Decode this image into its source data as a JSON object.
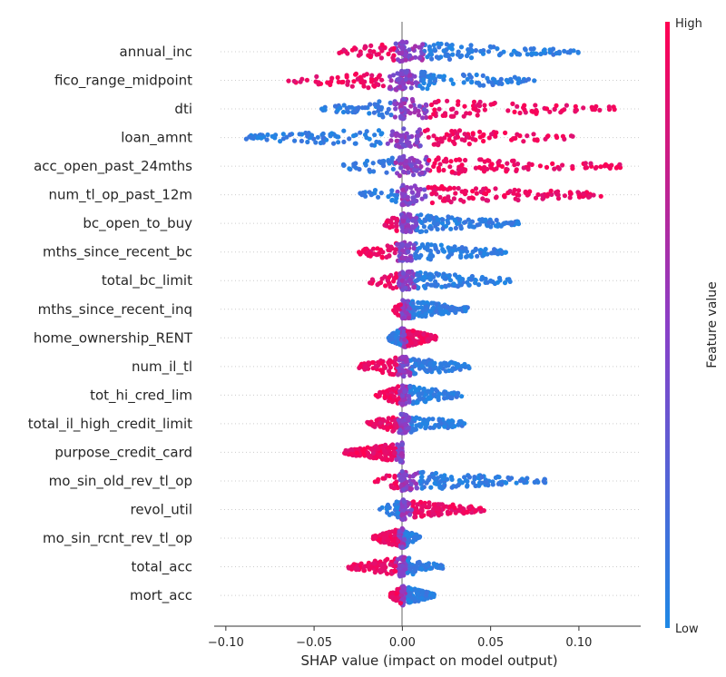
{
  "chart_data": {
    "type": "scatter",
    "subtype": "shap-beeswarm",
    "xlabel": "SHAP value (impact on model output)",
    "xlim": [
      -0.103,
      0.135
    ],
    "xticks": [
      -0.1,
      -0.05,
      0.0,
      0.05,
      0.1
    ],
    "xtick_labels": [
      "−0.10",
      "−0.05",
      "0.00",
      "0.05",
      "0.10"
    ],
    "grid": false,
    "colorbar": {
      "label": "Feature value",
      "high_label": "High",
      "low_label": "Low",
      "high_color": "#ff0052",
      "mid_color": "#8a3fc7",
      "low_color": "#1e88e5"
    },
    "features": [
      {
        "name": "annual_inc",
        "min": -0.037,
        "max": 0.1,
        "low_sign": 1
      },
      {
        "name": "fico_range_midpoint",
        "min": -0.065,
        "max": 0.08,
        "low_sign": 1
      },
      {
        "name": "dti",
        "min": -0.047,
        "max": 0.122,
        "low_sign": -1
      },
      {
        "name": "loan_amnt",
        "min": -0.09,
        "max": 0.097,
        "low_sign": -1
      },
      {
        "name": "acc_open_past_24mths",
        "min": -0.035,
        "max": 0.124,
        "low_sign": -1
      },
      {
        "name": "num_tl_op_past_12m",
        "min": -0.025,
        "max": 0.115,
        "low_sign": -1
      },
      {
        "name": "bc_open_to_buy",
        "min": -0.01,
        "max": 0.066,
        "low_sign": 1
      },
      {
        "name": "mths_since_recent_bc",
        "min": -0.025,
        "max": 0.06,
        "low_sign": 1
      },
      {
        "name": "total_bc_limit",
        "min": -0.02,
        "max": 0.062,
        "low_sign": 1
      },
      {
        "name": "mths_since_recent_inq",
        "min": -0.005,
        "max": 0.037,
        "low_sign": 1
      },
      {
        "name": "home_ownership_RENT",
        "min": -0.008,
        "max": 0.019,
        "low_sign": -1
      },
      {
        "name": "num_il_tl",
        "min": -0.025,
        "max": 0.04,
        "low_sign": 1
      },
      {
        "name": "tot_hi_cred_lim",
        "min": -0.015,
        "max": 0.034,
        "low_sign": 1
      },
      {
        "name": "total_il_high_credit_limit",
        "min": -0.02,
        "max": 0.036,
        "low_sign": 1
      },
      {
        "name": "purpose_credit_card",
        "min": -0.033,
        "max": 0.0,
        "low_sign": 1
      },
      {
        "name": "mo_sin_old_rev_tl_op",
        "min": -0.018,
        "max": 0.082,
        "low_sign": 1
      },
      {
        "name": "revol_util",
        "min": -0.013,
        "max": 0.047,
        "low_sign": -1
      },
      {
        "name": "mo_sin_rcnt_rev_tl_op",
        "min": -0.017,
        "max": 0.01,
        "low_sign": 1
      },
      {
        "name": "total_acc",
        "min": -0.031,
        "max": 0.023,
        "low_sign": 1
      },
      {
        "name": "mort_acc",
        "min": -0.007,
        "max": 0.018,
        "low_sign": 1
      }
    ]
  }
}
